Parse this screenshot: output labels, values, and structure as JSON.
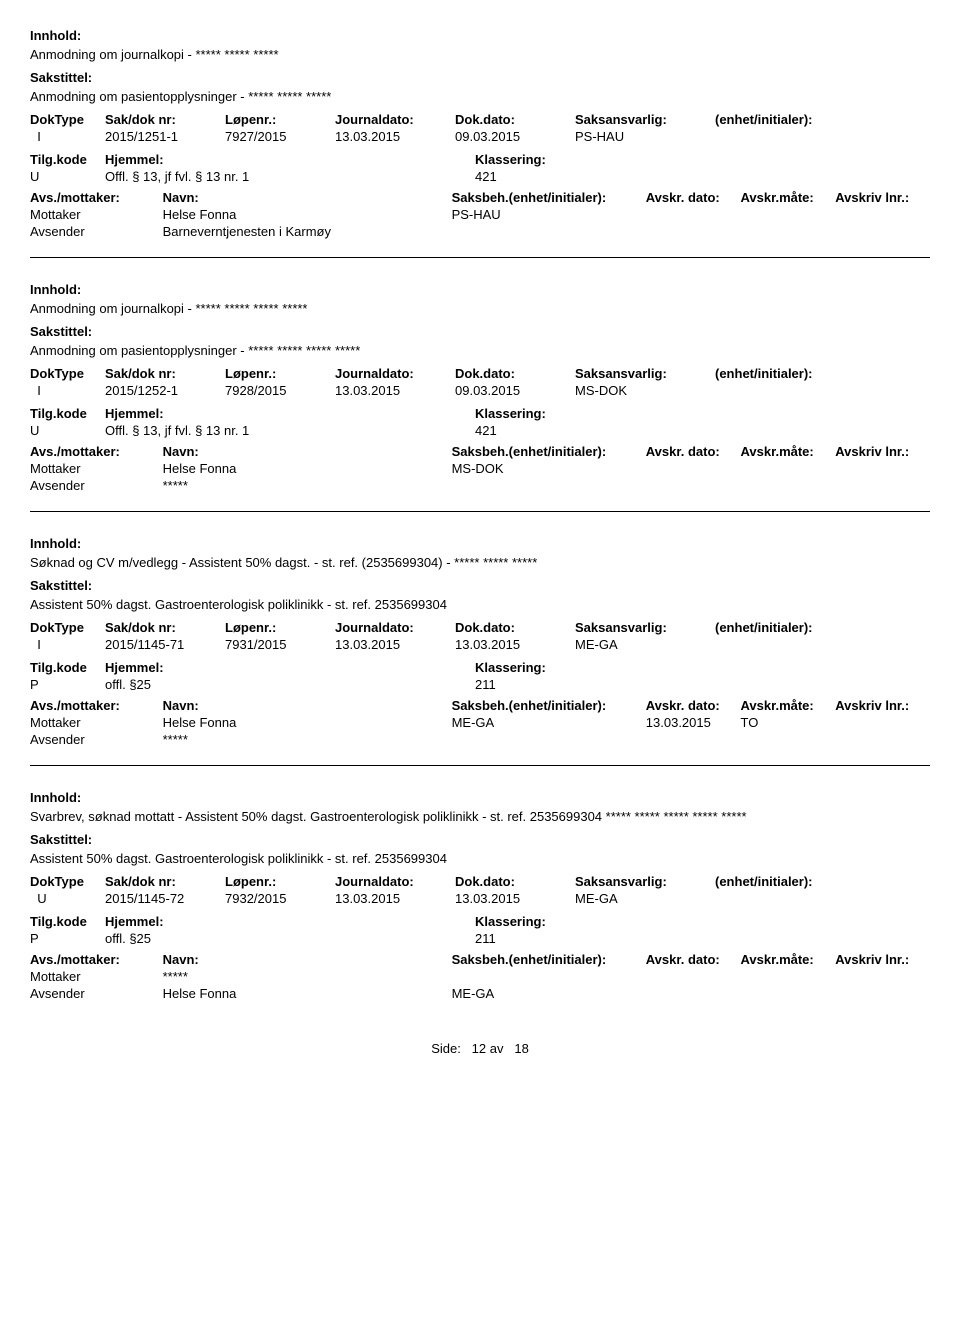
{
  "labels": {
    "innhold": "Innhold:",
    "sakstittel": "Sakstittel:",
    "doktype": "DokType",
    "sakdok": "Sak/dok nr:",
    "lopenr": "Løpenr.:",
    "journaldato": "Journaldato:",
    "dokdato": "Dok.dato:",
    "saksansvarlig": "Saksansvarlig:",
    "enhet": "(enhet/initialer):",
    "tilgkode": "Tilg.kode",
    "hjemmel": "Hjemmel:",
    "klassering": "Klassering:",
    "avsmottaker": "Avs./mottaker:",
    "navn": "Navn:",
    "saksbeh": "Saksbeh.(enhet/initialer):",
    "avskrdato": "Avskr. dato:",
    "avskrmate": "Avskr.måte:",
    "avskrlnr": "Avskriv lnr.:",
    "mottaker": "Mottaker",
    "avsender": "Avsender"
  },
  "records": [
    {
      "innhold": "Anmodning om journalkopi - ***** ***** *****",
      "sakstittel": "Anmodning om pasientopplysninger - ***** ***** *****",
      "doktype": "I",
      "sakdok": "2015/1251-1",
      "lopenr": "7927/2015",
      "journaldato": "13.03.2015",
      "dokdato": "09.03.2015",
      "saksansvarlig": "PS-HAU",
      "enhet": "",
      "tilgkode": "U",
      "hjemmel": "Offl. § 13, jf fvl. § 13 nr. 1",
      "klassering": "421",
      "parties": [
        {
          "role": "Mottaker",
          "navn": "Helse Fonna",
          "saksbeh": "PS-HAU",
          "avskrdato": "",
          "avskrmate": "",
          "avskrlnr": ""
        },
        {
          "role": "Avsender",
          "navn": "Barneverntjenesten i Karmøy",
          "saksbeh": "",
          "avskrdato": "",
          "avskrmate": "",
          "avskrlnr": ""
        }
      ]
    },
    {
      "innhold": "Anmodning om journalkopi - ***** ***** ***** *****",
      "sakstittel": "Anmodning om pasientopplysninger - ***** ***** ***** *****",
      "doktype": "I",
      "sakdok": "2015/1252-1",
      "lopenr": "7928/2015",
      "journaldato": "13.03.2015",
      "dokdato": "09.03.2015",
      "saksansvarlig": "MS-DOK",
      "enhet": "",
      "tilgkode": "U",
      "hjemmel": "Offl. § 13, jf fvl. § 13 nr. 1",
      "klassering": "421",
      "parties": [
        {
          "role": "Mottaker",
          "navn": "Helse Fonna",
          "saksbeh": "MS-DOK",
          "avskrdato": "",
          "avskrmate": "",
          "avskrlnr": ""
        },
        {
          "role": "Avsender",
          "navn": "*****",
          "saksbeh": "",
          "avskrdato": "",
          "avskrmate": "",
          "avskrlnr": ""
        }
      ]
    },
    {
      "innhold": "Søknad og CV m/vedlegg - Assistent 50% dagst. - st. ref. (2535699304) - ***** ***** *****",
      "sakstittel": "Assistent 50% dagst. Gastroenterologisk poliklinikk - st. ref. 2535699304",
      "doktype": "I",
      "sakdok": "2015/1145-71",
      "lopenr": "7931/2015",
      "journaldato": "13.03.2015",
      "dokdato": "13.03.2015",
      "saksansvarlig": "ME-GA",
      "enhet": "",
      "tilgkode": "P",
      "hjemmel": "offl. §25",
      "klassering": "211",
      "parties": [
        {
          "role": "Mottaker",
          "navn": "Helse Fonna",
          "saksbeh": "ME-GA",
          "avskrdato": "13.03.2015",
          "avskrmate": "TO",
          "avskrlnr": ""
        },
        {
          "role": "Avsender",
          "navn": "*****",
          "saksbeh": "",
          "avskrdato": "",
          "avskrmate": "",
          "avskrlnr": ""
        }
      ]
    },
    {
      "innhold": "Svarbrev, søknad mottatt - Assistent 50% dagst. Gastroenterologisk poliklinikk - st. ref. 2535699304 ***** ***** ***** ***** *****",
      "sakstittel": "Assistent 50% dagst. Gastroenterologisk poliklinikk - st. ref. 2535699304",
      "doktype": "U",
      "sakdok": "2015/1145-72",
      "lopenr": "7932/2015",
      "journaldato": "13.03.2015",
      "dokdato": "13.03.2015",
      "saksansvarlig": "ME-GA",
      "enhet": "",
      "tilgkode": "P",
      "hjemmel": "offl. §25",
      "klassering": "211",
      "parties": [
        {
          "role": "Mottaker",
          "navn": "*****",
          "saksbeh": "",
          "avskrdato": "",
          "avskrmate": "",
          "avskrlnr": ""
        },
        {
          "role": "Avsender",
          "navn": "Helse Fonna",
          "saksbeh": "ME-GA",
          "avskrdato": "",
          "avskrmate": "",
          "avskrlnr": ""
        }
      ]
    }
  ],
  "footer": {
    "side": "Side:",
    "page": "12",
    "av": "av",
    "total": "18"
  }
}
